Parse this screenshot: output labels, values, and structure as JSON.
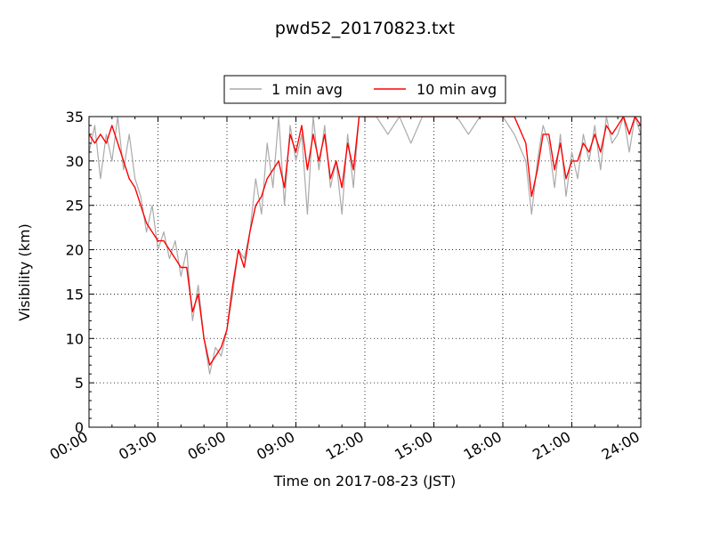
{
  "chart_data": {
    "type": "line",
    "title": "pwd52_20170823.txt",
    "xlabel": "Time on 2017-08-23 (JST)",
    "ylabel": "Visibility (km)",
    "x_unit": "hours",
    "xlim": [
      0,
      24
    ],
    "ylim": [
      0,
      35
    ],
    "x_ticks": [
      0,
      3,
      6,
      9,
      12,
      15,
      18,
      21,
      24
    ],
    "x_tick_labels": [
      "00:00",
      "03:00",
      "06:00",
      "09:00",
      "12:00",
      "15:00",
      "18:00",
      "21:00",
      "24:00"
    ],
    "y_ticks": [
      0,
      5,
      10,
      15,
      20,
      25,
      30,
      35
    ],
    "y_tick_labels": [
      "0",
      "5",
      "10",
      "15",
      "20",
      "25",
      "30",
      "35"
    ],
    "grid": true,
    "legend_position": "top-center",
    "series": [
      {
        "name": "1 min avg",
        "color": "#aaaaaa",
        "x": [
          0,
          0.25,
          0.5,
          0.75,
          1,
          1.25,
          1.5,
          1.75,
          2,
          2.25,
          2.5,
          2.75,
          3,
          3.25,
          3.5,
          3.75,
          4,
          4.25,
          4.5,
          4.75,
          5,
          5.25,
          5.5,
          5.75,
          6,
          6.25,
          6.5,
          6.75,
          7,
          7.25,
          7.5,
          7.75,
          8,
          8.25,
          8.5,
          8.75,
          9,
          9.25,
          9.5,
          9.75,
          10,
          10.25,
          10.5,
          10.75,
          11,
          11.25,
          11.5,
          11.75,
          12,
          12.5,
          13,
          13.5,
          14,
          14.5,
          15,
          15.5,
          16,
          16.5,
          17,
          17.5,
          18,
          18.5,
          19,
          19.25,
          19.5,
          19.75,
          20,
          20.25,
          20.5,
          20.75,
          21,
          21.25,
          21.5,
          21.75,
          22,
          22.25,
          22.5,
          22.75,
          23,
          23.25,
          23.5,
          23.75,
          24
        ],
        "y": [
          31,
          34,
          28,
          33,
          30,
          35,
          29,
          33,
          28,
          26,
          22,
          25,
          20,
          22,
          19,
          21,
          17,
          20,
          12,
          16,
          10,
          6,
          9,
          8,
          11,
          15,
          20,
          19,
          22,
          28,
          24,
          32,
          27,
          35,
          25,
          34,
          30,
          33,
          24,
          35,
          29,
          34,
          27,
          30,
          24,
          33,
          27,
          35,
          35,
          35,
          33,
          35,
          32,
          35,
          35,
          35,
          35,
          33,
          35,
          35,
          35,
          33,
          30,
          24,
          30,
          34,
          32,
          27,
          33,
          26,
          31,
          28,
          33,
          30,
          34,
          29,
          35,
          32,
          33,
          35,
          31,
          35,
          33
        ]
      },
      {
        "name": "10 min avg",
        "color": "#ff0000",
        "x": [
          0,
          0.25,
          0.5,
          0.75,
          1,
          1.25,
          1.5,
          1.75,
          2,
          2.25,
          2.5,
          2.75,
          3,
          3.25,
          3.5,
          3.75,
          4,
          4.25,
          4.5,
          4.75,
          5,
          5.25,
          5.5,
          5.75,
          6,
          6.25,
          6.5,
          6.75,
          7,
          7.25,
          7.5,
          7.75,
          8,
          8.25,
          8.5,
          8.75,
          9,
          9.25,
          9.5,
          9.75,
          10,
          10.25,
          10.5,
          10.75,
          11,
          11.25,
          11.5,
          11.75,
          12,
          12.5,
          13,
          13.5,
          14,
          14.5,
          15,
          15.5,
          16,
          16.5,
          17,
          17.5,
          18,
          18.5,
          19,
          19.25,
          19.5,
          19.75,
          20,
          20.25,
          20.5,
          20.75,
          21,
          21.25,
          21.5,
          21.75,
          22,
          22.25,
          22.5,
          22.75,
          23,
          23.25,
          23.5,
          23.75,
          24
        ],
        "y": [
          33,
          32,
          33,
          32,
          34,
          32,
          30,
          28,
          27,
          25,
          23,
          22,
          21,
          21,
          20,
          19,
          18,
          18,
          13,
          15,
          10,
          7,
          8,
          9,
          11,
          16,
          20,
          18,
          22,
          25,
          26,
          28,
          29,
          30,
          27,
          33,
          31,
          34,
          29,
          33,
          30,
          33,
          28,
          30,
          27,
          32,
          29,
          35,
          35,
          35,
          35,
          35,
          35,
          35,
          35,
          35,
          35,
          35,
          35,
          35,
          35,
          35,
          32,
          26,
          29,
          33,
          33,
          29,
          32,
          28,
          30,
          30,
          32,
          31,
          33,
          31,
          34,
          33,
          34,
          35,
          33,
          35,
          34
        ]
      }
    ]
  }
}
